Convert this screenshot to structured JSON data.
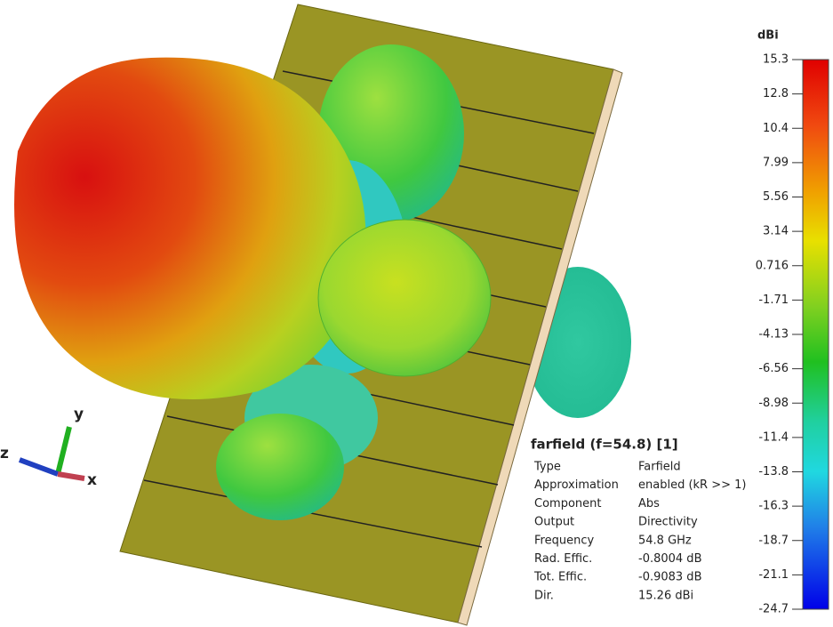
{
  "colorbar": {
    "unit": "dBi",
    "labels": [
      "15.3",
      "12.8",
      "10.4",
      "7.99",
      "5.56",
      "3.14",
      "0.716",
      "-1.71",
      "-4.13",
      "-6.56",
      "-8.98",
      "-11.4",
      "-13.8",
      "-16.3",
      "-18.7",
      "-21.1",
      "-24.7"
    ]
  },
  "info": {
    "title": "farfield (f=54.8) [1]",
    "rows": [
      [
        "Type",
        "Farfield"
      ],
      [
        "Approximation",
        "enabled (kR >> 1)"
      ],
      [
        "Component",
        "Abs"
      ],
      [
        "Output",
        "Directivity"
      ],
      [
        "Frequency",
        "54.8 GHz"
      ],
      [
        "Rad. Effic.",
        "-0.8004 dB"
      ],
      [
        "Tot. Effic.",
        "-0.9083 dB"
      ],
      [
        "Dir.",
        "15.26 dBi"
      ]
    ]
  },
  "axes": {
    "x": "x",
    "y": "y",
    "z": "z"
  }
}
